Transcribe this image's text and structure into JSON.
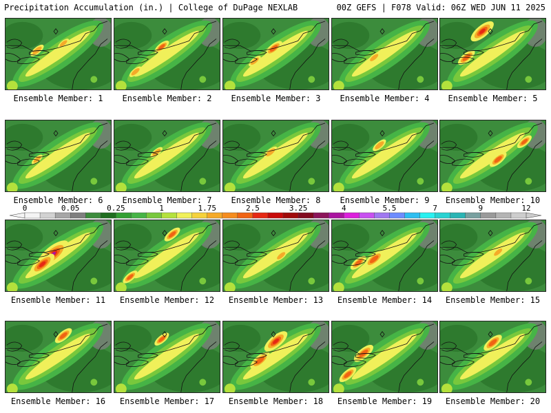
{
  "header": {
    "left": "Precipitation Accumulation (in.) | College of DuPage NEXLAB",
    "right": "00Z GEFS | F078 Valid: 06Z WED JUN 11 2025"
  },
  "colorbar": {
    "labels": [
      "0",
      "0.05",
      "0.25",
      "1",
      "1.75",
      "2.5",
      "3.25",
      "4",
      "5.5",
      "7",
      "9",
      "12"
    ],
    "colors": [
      "#f4f4f4",
      "#d2d2d2",
      "#a6a6a6",
      "#7f7f7f",
      "#3c8c3c",
      "#1f6e1f",
      "#32a032",
      "#46b446",
      "#78c83c",
      "#b4e13c",
      "#f0f05a",
      "#f5d23c",
      "#f5aa28",
      "#f58c1e",
      "#f06414",
      "#e62814",
      "#c80a0a",
      "#a00a0a",
      "#820a1e",
      "#8c145a",
      "#aa14a0",
      "#dc1edc",
      "#c850f0",
      "#a078f0",
      "#6e8cff",
      "#2ebef0",
      "#28f0f0",
      "#28d2d2",
      "#2ab4b4",
      "#78a0a0",
      "#9a9a9a",
      "#b4b4b4",
      "#cdcdcd"
    ]
  },
  "members": [
    {
      "label": "Ensemble Member: 1",
      "intensity": 0.45,
      "spots": [
        [
          0.3,
          0.45,
          0.55
        ],
        [
          0.55,
          0.35,
          0.45
        ]
      ]
    },
    {
      "label": "Ensemble Member: 2",
      "intensity": 0.55,
      "spots": [
        [
          0.45,
          0.4,
          0.6
        ],
        [
          0.2,
          0.75,
          0.5
        ]
      ]
    },
    {
      "label": "Ensemble Member: 3",
      "intensity": 0.6,
      "spots": [
        [
          0.48,
          0.42,
          0.7
        ],
        [
          0.3,
          0.6,
          0.5
        ]
      ]
    },
    {
      "label": "Ensemble Member: 4",
      "intensity": 0.4,
      "spots": [
        [
          0.4,
          0.55,
          0.5
        ]
      ]
    },
    {
      "label": "Ensemble Member: 5",
      "intensity": 0.8,
      "spots": [
        [
          0.4,
          0.18,
          0.95
        ],
        [
          0.25,
          0.55,
          0.7
        ]
      ]
    },
    {
      "label": "Ensemble Member: 6",
      "intensity": 0.3,
      "spots": [
        [
          0.3,
          0.55,
          0.45
        ]
      ]
    },
    {
      "label": "Ensemble Member: 7",
      "intensity": 0.35,
      "spots": [
        [
          0.4,
          0.45,
          0.5
        ]
      ]
    },
    {
      "label": "Ensemble Member: 8",
      "intensity": 0.45,
      "spots": [
        [
          0.45,
          0.45,
          0.55
        ]
      ]
    },
    {
      "label": "Ensemble Member: 9",
      "intensity": 0.4,
      "spots": [
        [
          0.45,
          0.35,
          0.55
        ]
      ]
    },
    {
      "label": "Ensemble Member: 10",
      "intensity": 0.6,
      "spots": [
        [
          0.55,
          0.55,
          0.7
        ],
        [
          0.8,
          0.3,
          0.6
        ]
      ]
    },
    {
      "label": "Ensemble Member: 11",
      "intensity": 1.0,
      "spots": [
        [
          0.45,
          0.48,
          1.3
        ],
        [
          0.35,
          0.62,
          1.0
        ]
      ]
    },
    {
      "label": "Ensemble Member: 12",
      "intensity": 0.55,
      "spots": [
        [
          0.55,
          0.2,
          0.65
        ],
        [
          0.15,
          0.8,
          0.6
        ]
      ]
    },
    {
      "label": "Ensemble Member: 13",
      "intensity": 0.4,
      "spots": [
        [
          0.55,
          0.5,
          0.5
        ]
      ]
    },
    {
      "label": "Ensemble Member: 14",
      "intensity": 0.65,
      "spots": [
        [
          0.4,
          0.55,
          0.8
        ],
        [
          0.25,
          0.6,
          0.65
        ]
      ]
    },
    {
      "label": "Ensemble Member: 15",
      "intensity": 0.4,
      "spots": [
        [
          0.55,
          0.45,
          0.5
        ]
      ]
    },
    {
      "label": "Ensemble Member: 16",
      "intensity": 0.55,
      "spots": [
        [
          0.55,
          0.2,
          0.7
        ]
      ]
    },
    {
      "label": "Ensemble Member: 17",
      "intensity": 0.5,
      "spots": [
        [
          0.45,
          0.25,
          0.6
        ]
      ]
    },
    {
      "label": "Ensemble Member: 18",
      "intensity": 0.8,
      "spots": [
        [
          0.5,
          0.28,
          0.95
        ],
        [
          0.35,
          0.55,
          0.8
        ]
      ]
    },
    {
      "label": "Ensemble Member: 19",
      "intensity": 0.7,
      "spots": [
        [
          0.3,
          0.45,
          0.8
        ],
        [
          0.15,
          0.75,
          0.7
        ]
      ]
    },
    {
      "label": "Ensemble Member: 20",
      "intensity": 0.6,
      "spots": [
        [
          0.5,
          0.3,
          0.75
        ]
      ]
    }
  ]
}
